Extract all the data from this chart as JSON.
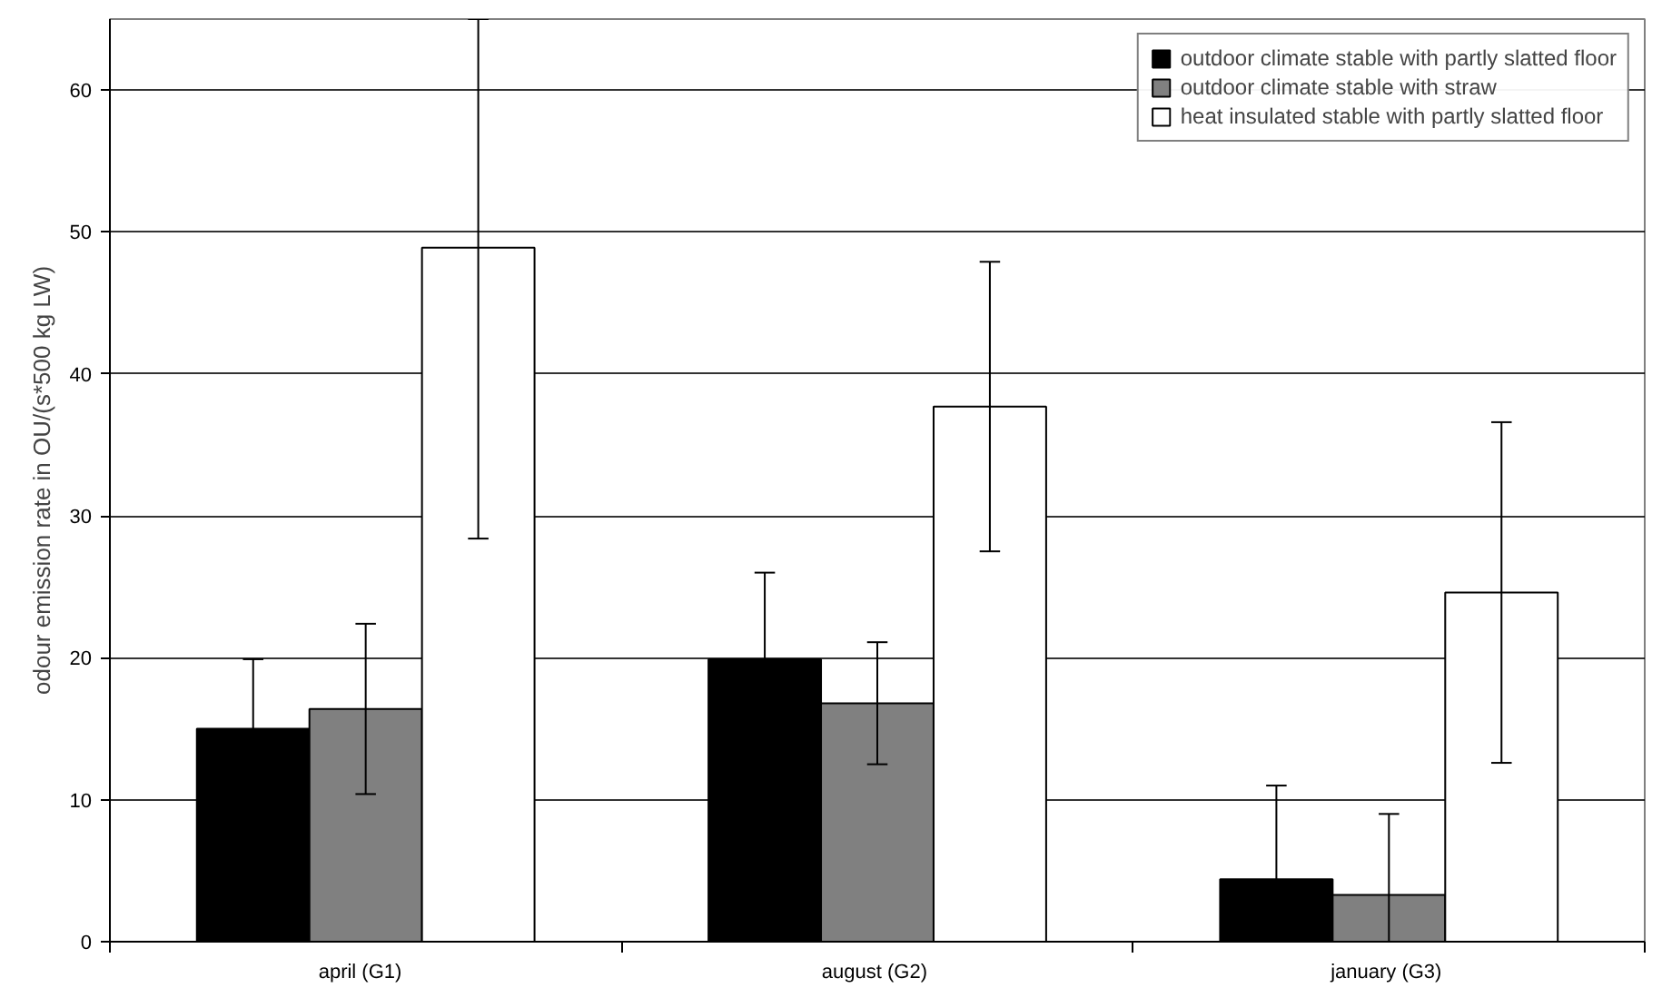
{
  "chart_data": {
    "type": "bar",
    "ylabel": "odour emission rate in OU/(s*500 kg LW)",
    "categories": [
      "april   (G1)",
      "august  (G2)",
      "january  (G3)"
    ],
    "series": [
      {
        "name": "outdoor climate stable with partly slatted floor",
        "color": "#000000",
        "values": [
          15.0,
          19.9,
          4.4
        ],
        "errors": [
          4.9,
          6.1,
          [
            0,
            11.0
          ]
        ]
      },
      {
        "name": "outdoor climate stable with straw",
        "color": "#808080",
        "values": [
          16.4,
          16.8,
          3.3
        ],
        "errors": [
          6,
          4.3,
          [
            0,
            9.0
          ]
        ]
      },
      {
        "name": "heat insulated stable with partly slatted floor",
        "color": "#ffffff",
        "values": [
          48.9,
          37.7,
          24.6
        ],
        "errors": [
          [
            28.4,
            65
          ],
          10.2,
          12
        ]
      }
    ],
    "ylim": [
      0,
      65
    ],
    "yticks": [
      0,
      10,
      20,
      30,
      40,
      50,
      60
    ],
    "grid": "y",
    "legend": "top right"
  }
}
